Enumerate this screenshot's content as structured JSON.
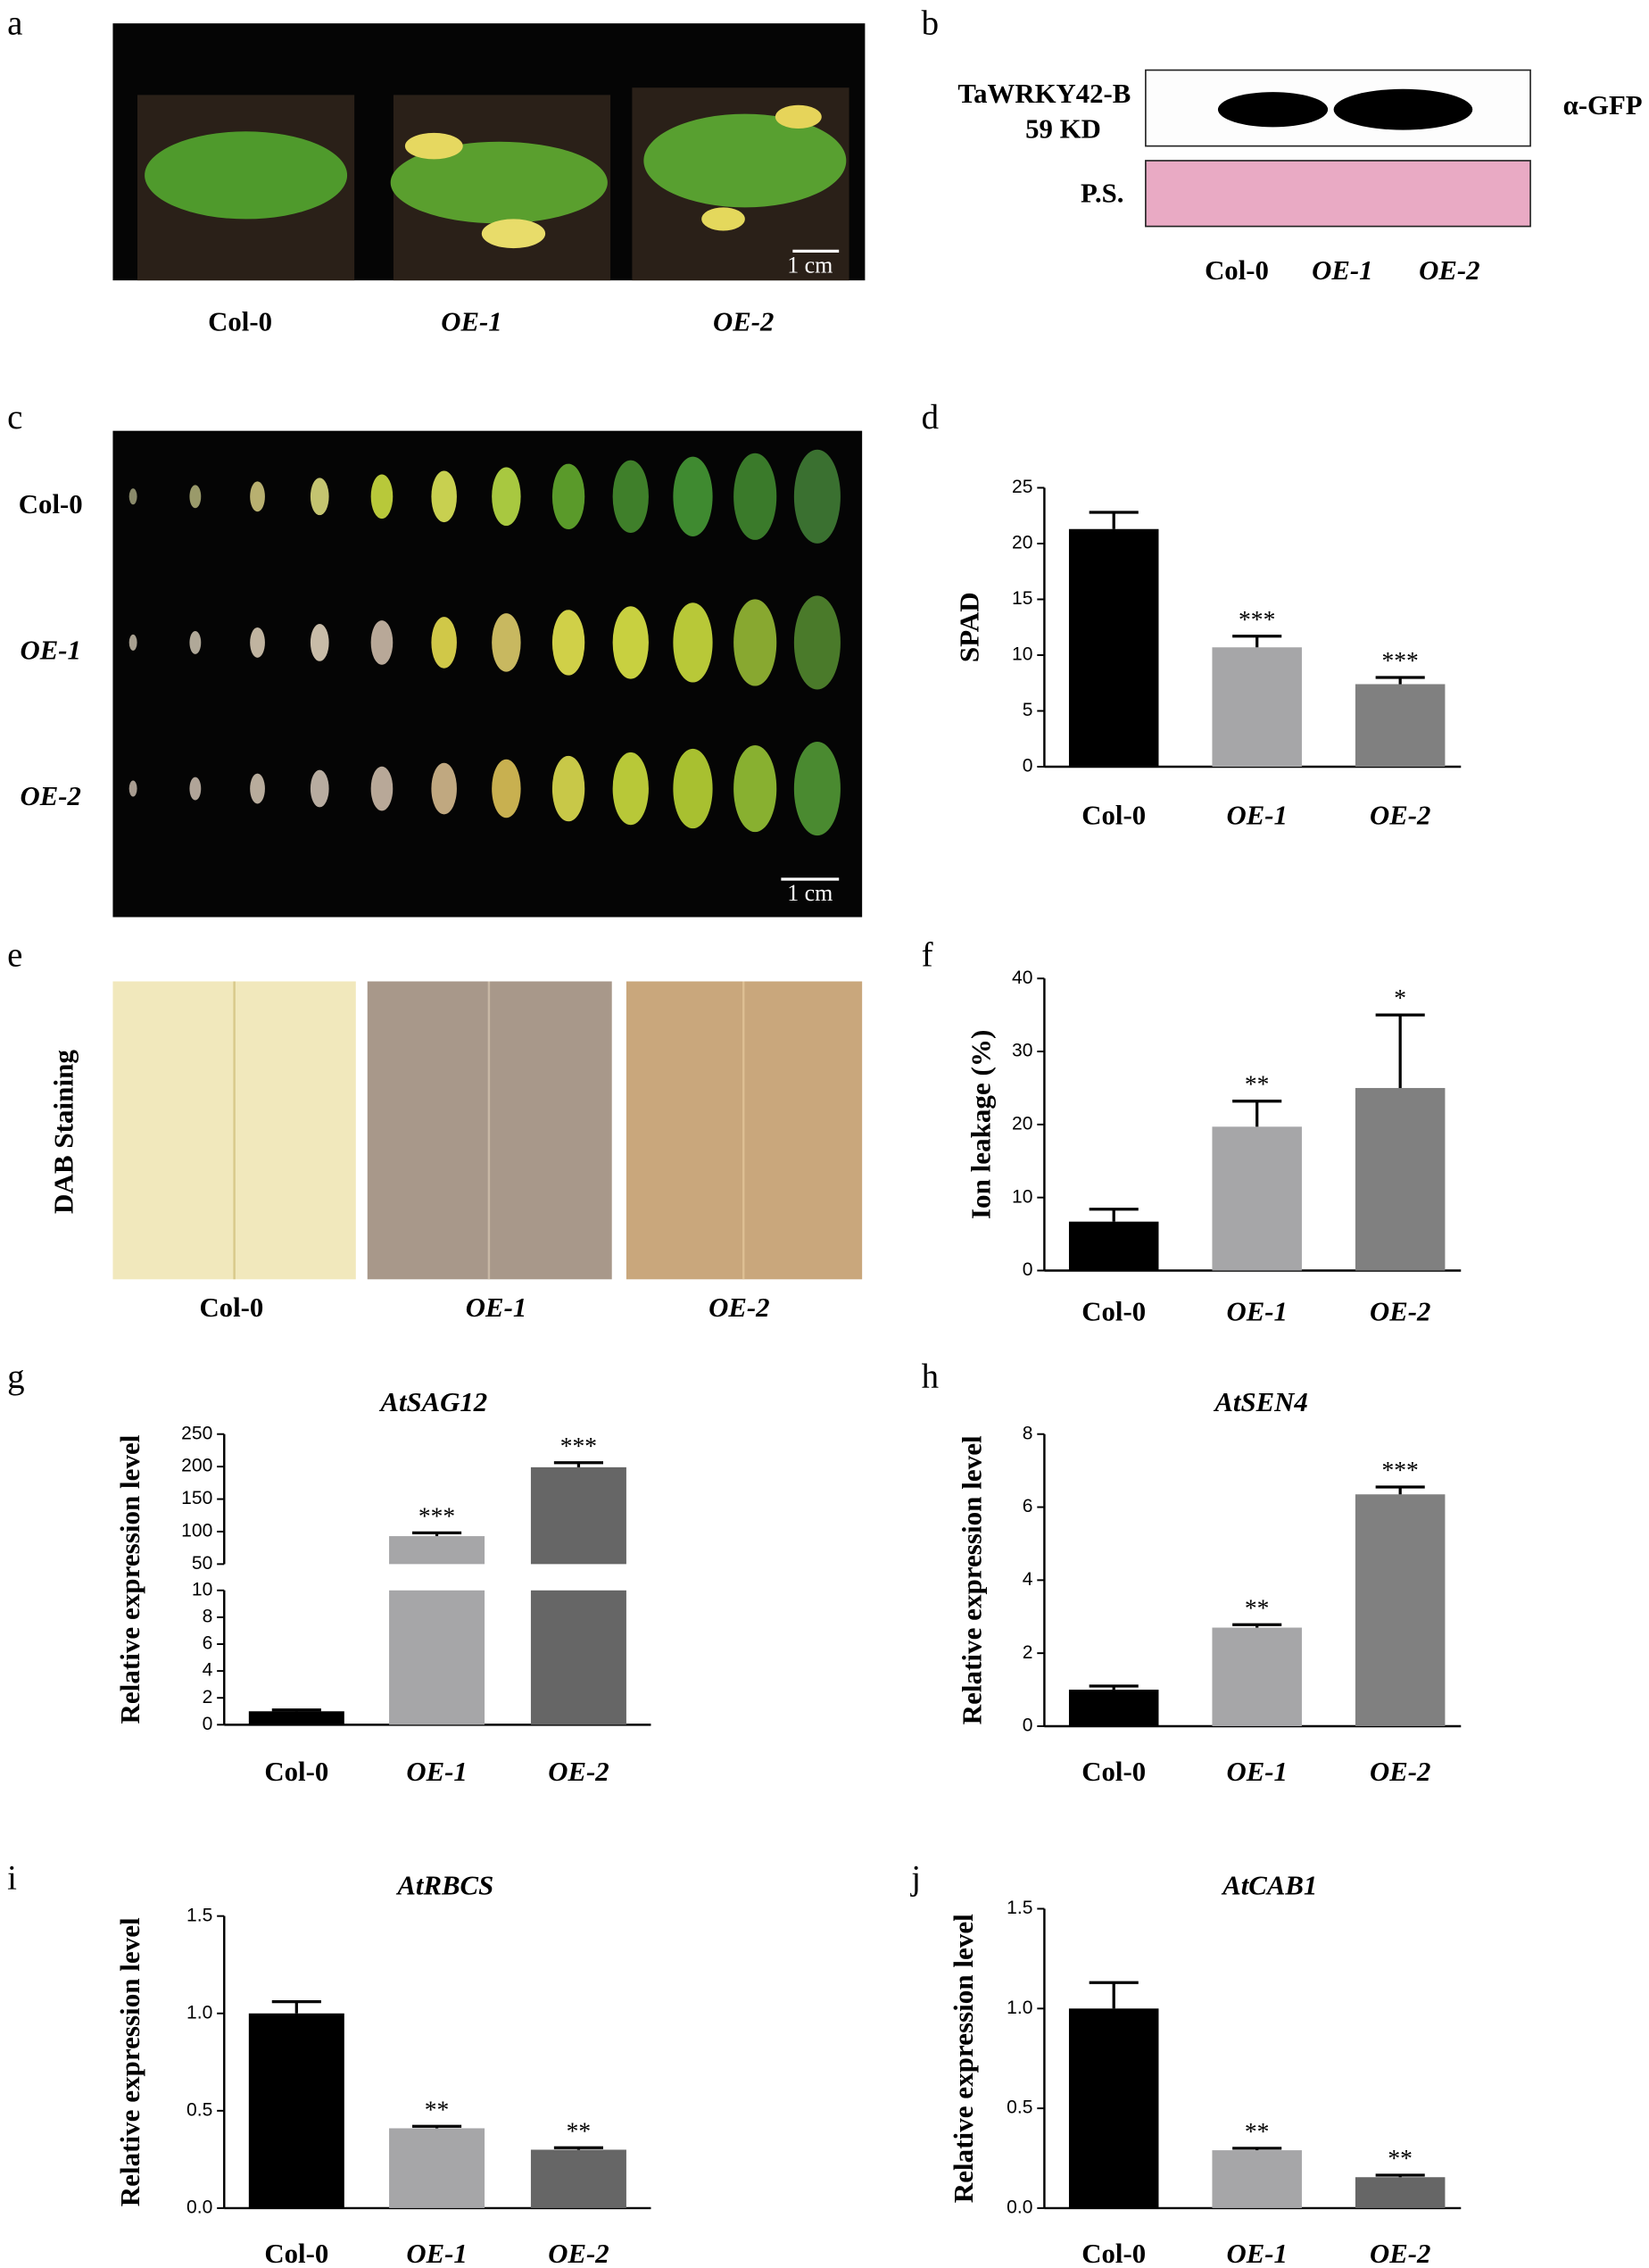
{
  "panels": {
    "a": {
      "letter": "a",
      "labels": [
        "Col-0",
        "OE-1",
        "OE-2"
      ],
      "scale": "1 cm"
    },
    "b": {
      "letter": "b",
      "protein": "TaWRKY42-B",
      "size": "59 KD",
      "antibody": "α-GFP",
      "stain": "P.S.",
      "labels": [
        "Col-0",
        "OE-1",
        "OE-2"
      ]
    },
    "c": {
      "letter": "c",
      "rows": [
        "Col-0",
        "OE-1",
        "OE-2"
      ],
      "scale": "1 cm"
    },
    "d": {
      "letter": "d"
    },
    "e": {
      "letter": "e",
      "side": "DAB  Staining",
      "labels": [
        "Col-0",
        "OE-1",
        "OE-2"
      ]
    },
    "f": {
      "letter": "f"
    },
    "g": {
      "letter": "g"
    },
    "h": {
      "letter": "h"
    },
    "i": {
      "letter": "i"
    },
    "j": {
      "letter": "j"
    }
  },
  "chart_data": [
    {
      "type": "bar",
      "ylabel": "SPAD",
      "categories": [
        "Col-0",
        "OE-1",
        "OE-2"
      ],
      "values": [
        21.3,
        10.7,
        7.4
      ],
      "errors": [
        1.5,
        1.0,
        0.6
      ],
      "annotations": [
        null,
        "***",
        "***"
      ],
      "colors": [
        "#000000",
        "#a6a6a8",
        "#808080"
      ],
      "ylim": [
        0,
        25
      ],
      "yticks": [
        0,
        5,
        10,
        15,
        20,
        25
      ]
    },
    {
      "type": "bar",
      "ylabel": "Ion leakage (%)",
      "categories": [
        "Col-0",
        "OE-1",
        "OE-2"
      ],
      "values": [
        6.7,
        19.7,
        25
      ],
      "errors": [
        1.7,
        3.5,
        10
      ],
      "annotations": [
        null,
        "**",
        "*"
      ],
      "colors": [
        "#000000",
        "#a6a6a8",
        "#808080"
      ],
      "ylim": [
        0,
        40
      ],
      "yticks": [
        0,
        10,
        20,
        30,
        40
      ]
    },
    {
      "type": "bar",
      "title": "AtSAG12",
      "ylabel": "Relative expression level",
      "categories": [
        "Col-0",
        "OE-1",
        "OE-2"
      ],
      "values": [
        1,
        93,
        199
      ],
      "errors": [
        0.1,
        5,
        7
      ],
      "annotations": [
        null,
        "***",
        "***"
      ],
      "colors": [
        "#000000",
        "#a6a6a8",
        "#666666"
      ],
      "ylim": [
        0,
        250
      ],
      "ybreak": [
        10,
        50
      ],
      "yticks": [
        0,
        2,
        4,
        6,
        8,
        10,
        50,
        100,
        150,
        200,
        250
      ]
    },
    {
      "type": "bar",
      "title": "AtSEN4",
      "ylabel": "Relative expression level",
      "categories": [
        "Col-0",
        "OE-1",
        "OE-2"
      ],
      "values": [
        1,
        2.7,
        6.35
      ],
      "errors": [
        0.1,
        0.08,
        0.2
      ],
      "annotations": [
        null,
        "**",
        "***"
      ],
      "colors": [
        "#000000",
        "#a6a6a8",
        "#808080"
      ],
      "ylim": [
        0,
        8
      ],
      "yticks": [
        0,
        2,
        4,
        6,
        8
      ]
    },
    {
      "type": "bar",
      "title": "AtRBCS",
      "ylabel": "Relative expression level",
      "categories": [
        "Col-0",
        "OE-1",
        "OE-2"
      ],
      "values": [
        1.0,
        0.41,
        0.3
      ],
      "errors": [
        0.06,
        0.01,
        0.01
      ],
      "annotations": [
        null,
        "**",
        "**"
      ],
      "colors": [
        "#000000",
        "#a6a6a8",
        "#666666"
      ],
      "ylim": [
        0,
        1.5
      ],
      "yticks": [
        {
          "value": 0,
          "label": "0.0"
        },
        0.5,
        {
          "value": 1,
          "label": "1.0"
        },
        1.5
      ]
    },
    {
      "type": "bar",
      "title": "AtCAB1",
      "ylabel": "Relative expression level",
      "categories": [
        "Col-0",
        "OE-1",
        "OE-2"
      ],
      "values": [
        1.0,
        0.29,
        0.155
      ],
      "errors": [
        0.13,
        0.01,
        0.01
      ],
      "annotations": [
        null,
        "**",
        "**"
      ],
      "colors": [
        "#000000",
        "#a6a6a8",
        "#666666"
      ],
      "ylim": [
        0,
        1.5
      ],
      "yticks": [
        {
          "value": 0,
          "label": "0.0"
        },
        0.5,
        {
          "value": 1,
          "label": "1.0"
        },
        1.5
      ]
    }
  ]
}
